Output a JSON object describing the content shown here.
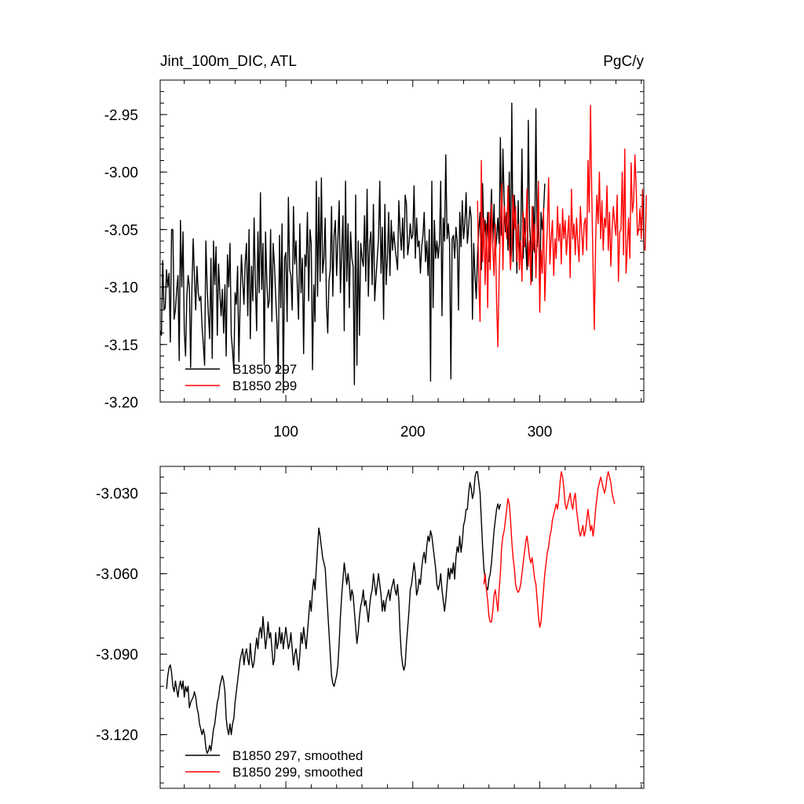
{
  "colors": {
    "series_297": "#000000",
    "series_299": "#ff0000"
  },
  "chart_data": [
    {
      "type": "line",
      "title": "Jint_100m_DIC, ATL",
      "units": "PgC/y",
      "xlim": [
        1,
        382
      ],
      "ylim": [
        -3.2,
        -2.92
      ],
      "xticks": [
        100,
        200,
        300
      ],
      "yticks": [
        -3.2,
        -3.15,
        -3.1,
        -3.05,
        -3.0,
        -2.95
      ],
      "ytick_labels": [
        "-3.20",
        "-3.15",
        "-3.10",
        "-3.05",
        "-3.00",
        "-2.95"
      ],
      "grid": false,
      "legend_position": "bottom-left",
      "series": [
        {
          "name": "B1850 297",
          "color": "#000000",
          "x_start": 1,
          "values": [
            -3.138,
            -3.142,
            -3.077,
            -3.12,
            -3.118,
            -3.085,
            -3.1,
            -3.088,
            -3.148,
            -3.05,
            -3.05,
            -3.128,
            -3.12,
            -3.103,
            -3.09,
            -3.164,
            -3.042,
            -3.1,
            -3.052,
            -3.138,
            -3.16,
            -3.108,
            -3.09,
            -3.1,
            -3.17,
            -3.102,
            -3.058,
            -3.09,
            -3.12,
            -3.082,
            -3.105,
            -3.112,
            -3.108,
            -3.135,
            -3.15,
            -3.168,
            -3.06,
            -3.1,
            -3.124,
            -3.145,
            -3.075,
            -3.162,
            -3.06,
            -3.098,
            -3.065,
            -3.142,
            -3.08,
            -3.105,
            -3.125,
            -3.102,
            -3.14,
            -3.098,
            -3.16,
            -3.072,
            -3.1,
            -3.062,
            -3.142,
            -3.155,
            -3.172,
            -3.105,
            -3.115,
            -3.082,
            -3.165,
            -3.112,
            -3.072,
            -3.095,
            -3.115,
            -3.078,
            -3.062,
            -3.125,
            -3.05,
            -3.145,
            -3.082,
            -3.112,
            -3.04,
            -3.098,
            -3.138,
            -3.052,
            -3.105,
            -3.018,
            -3.102,
            -3.062,
            -3.168,
            -3.052,
            -3.095,
            -3.118,
            -3.112,
            -3.05,
            -3.13,
            -3.062,
            -3.08,
            -3.108,
            -3.132,
            -3.175,
            -3.055,
            -3.118,
            -3.045,
            -3.192,
            -3.075,
            -3.07,
            -3.13,
            -3.022,
            -3.085,
            -3.09,
            -3.12,
            -3.03,
            -3.08,
            -3.06,
            -3.098,
            -3.128,
            -3.045,
            -3.105,
            -3.075,
            -3.158,
            -3.072,
            -3.082,
            -3.035,
            -3.112,
            -3.05,
            -3.062,
            -3.172,
            -3.098,
            -3.13,
            -3.008,
            -3.108,
            -3.022,
            -3.095,
            -3.005,
            -3.088,
            -3.075,
            -3.04,
            -3.115,
            -3.14,
            -3.095,
            -3.085,
            -3.03,
            -3.108,
            -3.055,
            -3.042,
            -3.09,
            -3.06,
            -3.025,
            -3.105,
            -3.07,
            -3.038,
            -3.138,
            -3.008,
            -3.095,
            -3.045,
            -3.118,
            -3.052,
            -3.075,
            -3.082,
            -3.185,
            -3.02,
            -3.168,
            -3.06,
            -3.142,
            -3.062,
            -3.075,
            -3.082,
            -3.038,
            -3.095,
            -3.015,
            -3.108,
            -3.062,
            -3.052,
            -3.098,
            -3.028,
            -3.112,
            -3.092,
            -3.075,
            -3.058,
            -3.008,
            -3.088,
            -3.048,
            -3.128,
            -3.028,
            -3.098,
            -3.075,
            -3.035,
            -3.09,
            -3.042,
            -3.068,
            -3.052,
            -3.065,
            -3.075,
            -3.085,
            -3.025,
            -3.052,
            -3.068,
            -3.04,
            -3.075,
            -3.02,
            -3.028,
            -3.072,
            -3.062,
            -3.045,
            -3.058,
            -3.055,
            -3.012,
            -3.075,
            -3.04,
            -3.065,
            -3.06,
            -3.088,
            -3.065,
            -3.055,
            -3.035,
            -3.078,
            -3.06,
            -3.09,
            -3.05,
            -3.182,
            -3.008,
            -3.118,
            -3.042,
            -3.075,
            -3.06,
            -3.075,
            -3.062,
            -3.008,
            -3.125,
            -3.04,
            -3.06,
            -2.985,
            -3.058,
            -3.045,
            -3.062,
            -3.18,
            -3.058,
            -3.055,
            -3.075,
            -3.048,
            -3.06,
            -3.12,
            -3.035,
            -3.065,
            -3.025,
            -3.058,
            -3.045,
            -3.018,
            -3.062,
            -3.048,
            -3.03,
            -3.04,
            -3.128,
            -3.062,
            -3.09,
            -3.11,
            -3.072,
            -3.05,
            -3.035,
            -3.085,
            -3.01,
            -3.058,
            -3.042,
            -3.065,
            -3.035,
            -3.078,
            -3.048,
            -3.015,
            -3.062,
            -3.028,
            -3.072,
            -3.058,
            -3.04,
            -3.062,
            -2.97,
            -3.055,
            -2.98,
            -3.025,
            -3.052,
            -3.035,
            -3.068,
            -3.0,
            -3.085,
            -2.94,
            -3.078,
            -3.02,
            -3.042,
            -3.088,
            -3.025,
            -3.07,
            -3.06,
            -2.98,
            -3.075,
            -3.04,
            -3.065,
            -3.085,
            -2.955,
            -3.048,
            -3.065,
            -3.095,
            -3.03,
            -3.07,
            -2.945,
            -3.065,
            -3.035,
            -3.11,
            -3.035,
            -3.05,
            -3.035,
            -3.01
          ]
        },
        {
          "name": "B1850 299",
          "color": "#ff0000",
          "x_start": 251,
          "values": [
            -3.025,
            -3.095,
            -3.13,
            -2.99,
            -3.078,
            -3.04,
            -3.098,
            -3.045,
            -3.118,
            -3.035,
            -3.085,
            -3.028,
            -3.065,
            -3.09,
            -3.045,
            -3.112,
            -3.152,
            -3.09,
            -3.05,
            -3.01,
            -3.085,
            -3.03,
            -3.04,
            -3.058,
            -3.012,
            -3.062,
            -3.085,
            -3.065,
            -3.02,
            -3.05,
            -3.03,
            -3.078,
            -3.045,
            -3.085,
            -3.06,
            -3.095,
            -3.035,
            -3.065,
            -3.05,
            -3.015,
            -3.082,
            -3.06,
            -3.098,
            -3.03,
            -3.068,
            -3.045,
            -3.092,
            -3.052,
            -3.008,
            -3.122,
            -3.068,
            -3.088,
            -3.032,
            -3.112,
            -3.075,
            -3.048,
            -3.005,
            -3.08,
            -3.058,
            -3.042,
            -3.09,
            -3.058,
            -3.075,
            -3.03,
            -3.06,
            -3.045,
            -3.08,
            -3.032,
            -3.058,
            -3.042,
            -3.072,
            -3.055,
            -3.038,
            -3.092,
            -3.015,
            -3.058,
            -3.045,
            -3.072,
            -3.04,
            -3.062,
            -3.078,
            -3.03,
            -3.05,
            -3.072,
            -3.045,
            -3.04,
            -3.068,
            -2.99,
            -3.035,
            -2.942,
            -3.02,
            -3.082,
            -3.137,
            -3.062,
            -3.02,
            -3.045,
            -3.0,
            -3.058,
            -3.025,
            -3.068,
            -3.04,
            -3.048,
            -3.012,
            -3.068,
            -3.035,
            -3.082,
            -3.05,
            -3.03,
            -3.045,
            -3.055,
            -3.02,
            -3.095,
            -3.052,
            -3.05,
            -3.0,
            -3.072,
            -2.98,
            -3.088,
            -3.065,
            -3.04,
            -3.075,
            -2.992,
            -3.035,
            -3.025,
            -2.985,
            -3.015,
            -3.055,
            -3.05,
            -3.032,
            -3.058,
            -3.015,
            -3.065,
            -3.068,
            -3.02
          ]
        }
      ]
    },
    {
      "type": "line",
      "xlim": [
        1,
        382
      ],
      "ylim": [
        -3.14,
        -3.02
      ],
      "xticks": [
        100,
        200,
        300
      ],
      "yticks": [
        -3.12,
        -3.09,
        -3.06,
        -3.03
      ],
      "ytick_labels": [
        "-3.120",
        "-3.090",
        "-3.060",
        "-3.030"
      ],
      "grid": false,
      "legend_position": "bottom-left",
      "series": [
        {
          "name": "B1850 297, smoothed",
          "color": "#000000",
          "x_start": 6,
          "values": [
            -3.103,
            -3.098,
            -3.095,
            -3.094,
            -3.097,
            -3.102,
            -3.104,
            -3.1,
            -3.103,
            -3.106,
            -3.102,
            -3.1,
            -3.103,
            -3.1,
            -3.106,
            -3.102,
            -3.104,
            -3.102,
            -3.11,
            -3.108,
            -3.107,
            -3.106,
            -3.104,
            -3.106,
            -3.11,
            -3.112,
            -3.116,
            -3.118,
            -3.12,
            -3.118,
            -3.12,
            -3.125,
            -3.127,
            -3.126,
            -3.124,
            -3.126,
            -3.122,
            -3.118,
            -3.116,
            -3.112,
            -3.108,
            -3.106,
            -3.102,
            -3.1,
            -3.098,
            -3.1,
            -3.104,
            -3.114,
            -3.118,
            -3.12,
            -3.116,
            -3.12,
            -3.116,
            -3.114,
            -3.108,
            -3.104,
            -3.1,
            -3.096,
            -3.092,
            -3.09,
            -3.088,
            -3.094,
            -3.09,
            -3.088,
            -3.092,
            -3.094,
            -3.086,
            -3.092,
            -3.095,
            -3.093,
            -3.088,
            -3.084,
            -3.088,
            -3.082,
            -3.08,
            -3.084,
            -3.076,
            -3.082,
            -3.088,
            -3.084,
            -3.078,
            -3.084,
            -3.082,
            -3.088,
            -3.094,
            -3.092,
            -3.082,
            -3.088,
            -3.086,
            -3.08,
            -3.086,
            -3.082,
            -3.088,
            -3.084,
            -3.08,
            -3.084,
            -3.088,
            -3.086,
            -3.082,
            -3.088,
            -3.094,
            -3.09,
            -3.088,
            -3.092,
            -3.096,
            -3.09,
            -3.082,
            -3.086,
            -3.08,
            -3.084,
            -3.088,
            -3.082,
            -3.076,
            -3.07,
            -3.074,
            -3.066,
            -3.062,
            -3.066,
            -3.058,
            -3.05,
            -3.043,
            -3.046,
            -3.05,
            -3.054,
            -3.056,
            -3.058,
            -3.066,
            -3.074,
            -3.082,
            -3.09,
            -3.098,
            -3.101,
            -3.102,
            -3.1,
            -3.098,
            -3.094,
            -3.086,
            -3.076,
            -3.068,
            -3.062,
            -3.056,
            -3.06,
            -3.064,
            -3.06,
            -3.064,
            -3.07,
            -3.066,
            -3.068,
            -3.074,
            -3.08,
            -3.086,
            -3.082,
            -3.076,
            -3.072,
            -3.07,
            -3.066,
            -3.072,
            -3.07,
            -3.074,
            -3.078,
            -3.072,
            -3.068,
            -3.066,
            -3.06,
            -3.064,
            -3.068,
            -3.064,
            -3.06,
            -3.064,
            -3.068,
            -3.074,
            -3.07,
            -3.074,
            -3.07,
            -3.068,
            -3.066,
            -3.07,
            -3.066,
            -3.064,
            -3.062,
            -3.066,
            -3.068,
            -3.064,
            -3.07,
            -3.082,
            -3.09,
            -3.094,
            -3.096,
            -3.094,
            -3.086,
            -3.08,
            -3.074,
            -3.066,
            -3.064,
            -3.06,
            -3.056,
            -3.06,
            -3.068,
            -3.066,
            -3.062,
            -3.064,
            -3.058,
            -3.054,
            -3.052,
            -3.056,
            -3.05,
            -3.046,
            -3.048,
            -3.044,
            -3.046,
            -3.05,
            -3.054,
            -3.058,
            -3.064,
            -3.066,
            -3.064,
            -3.06,
            -3.066,
            -3.07,
            -3.074,
            -3.07,
            -3.064,
            -3.058,
            -3.062,
            -3.058,
            -3.06,
            -3.056,
            -3.062,
            -3.054,
            -3.05,
            -3.052,
            -3.046,
            -3.052,
            -3.048,
            -3.042,
            -3.04,
            -3.036,
            -3.036,
            -3.03,
            -3.026,
            -3.028,
            -3.032,
            -3.03,
            -3.024,
            -3.022,
            -3.022,
            -3.026,
            -3.03,
            -3.04,
            -3.05,
            -3.058,
            -3.062,
            -3.065,
            -3.066,
            -3.062,
            -3.06,
            -3.056,
            -3.05,
            -3.044,
            -3.04,
            -3.036,
            -3.034,
            -3.036,
            -3.034
          ]
        },
        {
          "name": "B1850 299, smoothed",
          "color": "#ff0000",
          "x_start": 256,
          "values": [
            -3.064,
            -3.06,
            -3.066,
            -3.07,
            -3.076,
            -3.078,
            -3.078,
            -3.074,
            -3.068,
            -3.066,
            -3.07,
            -3.074,
            -3.066,
            -3.06,
            -3.05,
            -3.046,
            -3.044,
            -3.04,
            -3.036,
            -3.032,
            -3.034,
            -3.04,
            -3.048,
            -3.054,
            -3.058,
            -3.064,
            -3.066,
            -3.067,
            -3.066,
            -3.064,
            -3.06,
            -3.056,
            -3.052,
            -3.048,
            -3.046,
            -3.05,
            -3.054,
            -3.056,
            -3.054,
            -3.058,
            -3.062,
            -3.064,
            -3.07,
            -3.076,
            -3.08,
            -3.078,
            -3.072,
            -3.066,
            -3.06,
            -3.056,
            -3.052,
            -3.05,
            -3.046,
            -3.044,
            -3.04,
            -3.038,
            -3.036,
            -3.034,
            -3.036,
            -3.032,
            -3.026,
            -3.022,
            -3.024,
            -3.028,
            -3.034,
            -3.036,
            -3.034,
            -3.032,
            -3.03,
            -3.034,
            -3.036,
            -3.032,
            -3.03,
            -3.036,
            -3.04,
            -3.044,
            -3.046,
            -3.044,
            -3.042,
            -3.046,
            -3.044,
            -3.04,
            -3.036,
            -3.04,
            -3.044,
            -3.042,
            -3.046,
            -3.042,
            -3.036,
            -3.032,
            -3.028,
            -3.026,
            -3.024,
            -3.026,
            -3.028,
            -3.03,
            -3.028,
            -3.024,
            -3.022,
            -3.024,
            -3.026,
            -3.03,
            -3.032,
            -3.034
          ]
        }
      ]
    }
  ]
}
